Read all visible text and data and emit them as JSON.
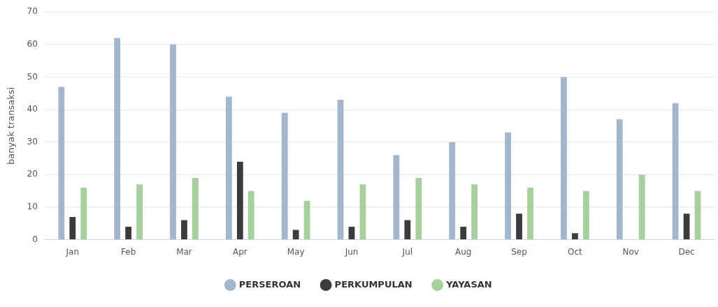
{
  "chart_data": {
    "type": "bar",
    "ylabel": "banyak transaksi",
    "categories": [
      "Jan",
      "Feb",
      "Mar",
      "Apr",
      "May",
      "Jun",
      "Jul",
      "Aug",
      "Sep",
      "Oct",
      "Nov",
      "Dec"
    ],
    "series": [
      {
        "name": "PERSEROAN",
        "color": "#a3b7cc",
        "values": [
          47,
          62,
          60,
          44,
          39,
          43,
          26,
          30,
          33,
          50,
          37,
          42
        ]
      },
      {
        "name": "PERKUMPULAN",
        "color": "#3b3b3e",
        "values": [
          7,
          4,
          6,
          24,
          3,
          4,
          6,
          4,
          8,
          2,
          null,
          8
        ]
      },
      {
        "name": "YAYASAN",
        "color": "#a6d09c",
        "values": [
          16,
          17,
          19,
          15,
          12,
          17,
          19,
          17,
          16,
          15,
          20,
          15
        ]
      }
    ],
    "ylim": [
      0,
      70
    ],
    "yticks": [
      0,
      10,
      20,
      30,
      40,
      50,
      60,
      70
    ],
    "grid": "y",
    "legend": "bottom"
  }
}
